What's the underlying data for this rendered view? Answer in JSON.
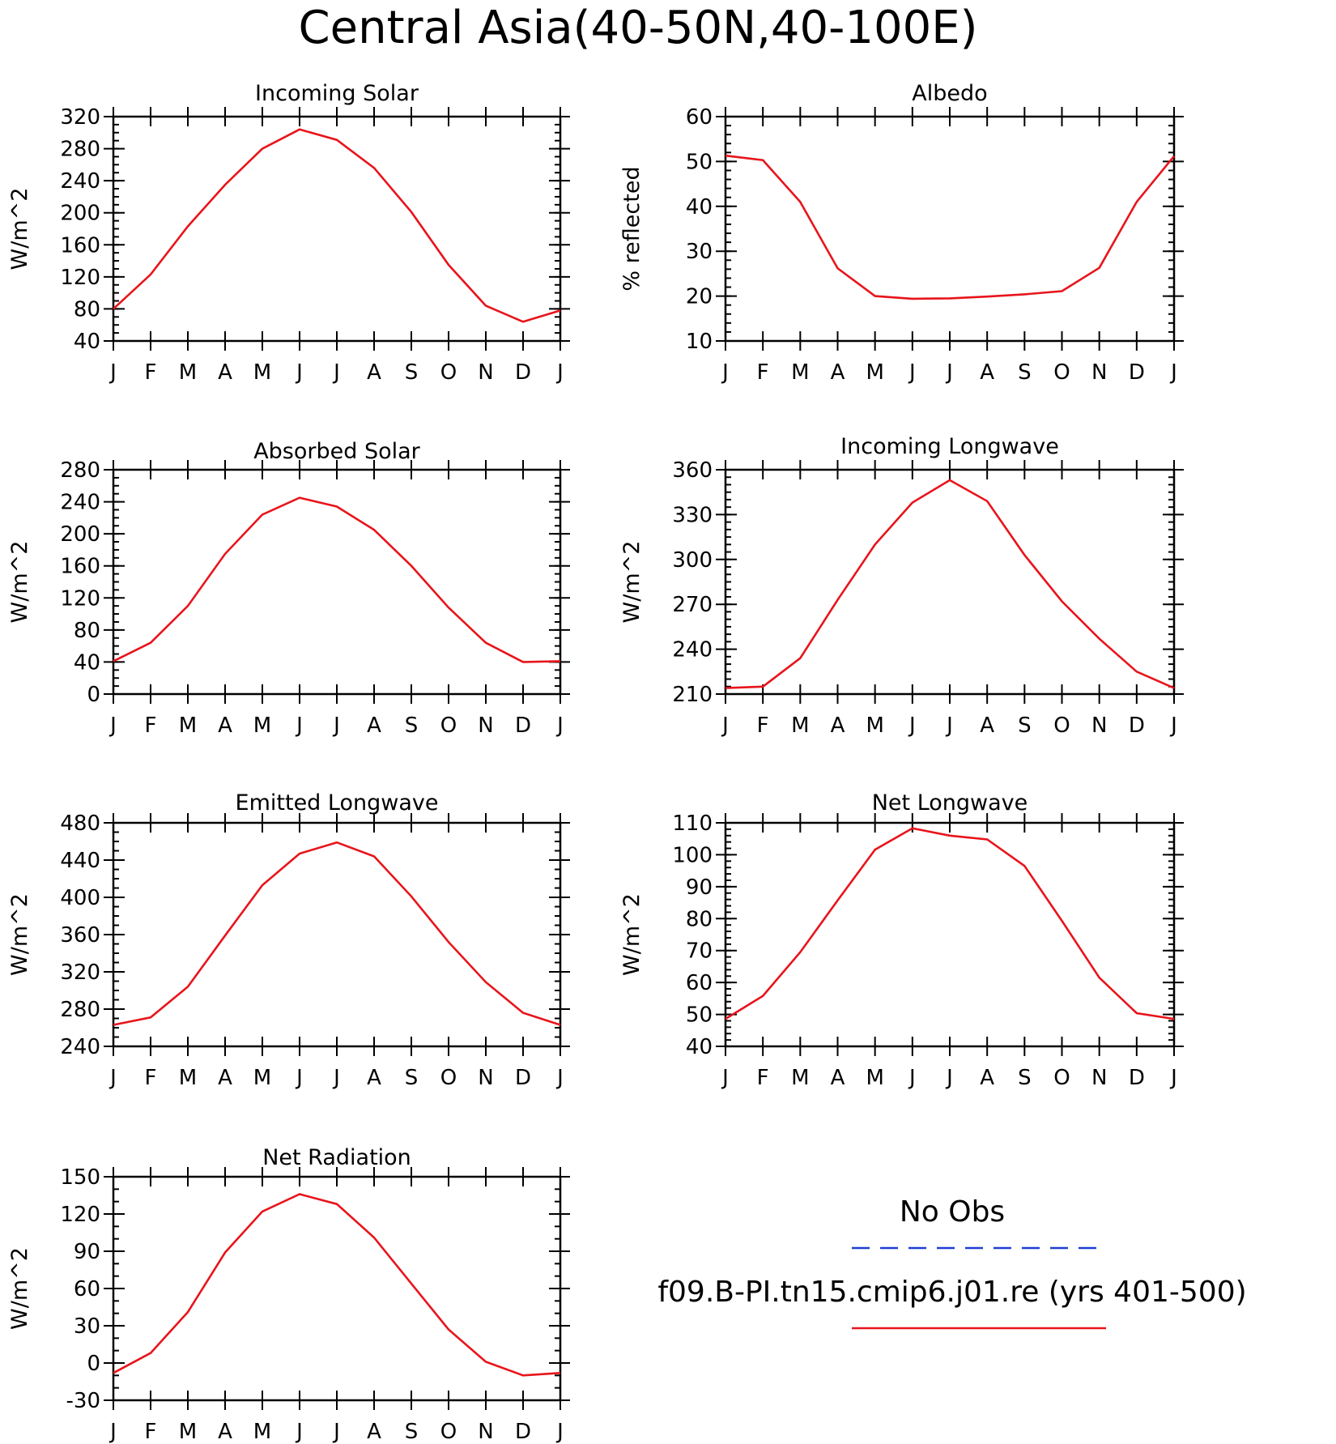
{
  "figure": {
    "title": "Central Asia(40-50N,40-100E)"
  },
  "legend": {
    "entries": [
      {
        "label": "No Obs",
        "color": "#1f3fd6",
        "dash": true
      },
      {
        "label": "f09.B-PI.tn15.cmip6.j01.re (yrs 401-500)",
        "color": "#e8141b",
        "dash": false
      }
    ]
  },
  "colors": {
    "model": "#e8141b",
    "obs": "#1f3fd6"
  },
  "chart_data": [
    {
      "type": "line",
      "title": "Incoming Solar",
      "ylabel": "W/m^2",
      "categories": [
        "J",
        "F",
        "M",
        "A",
        "M",
        "J",
        "J",
        "A",
        "S",
        "O",
        "N",
        "D",
        "J"
      ],
      "ylim": [
        40,
        320
      ],
      "yticks": [
        40,
        80,
        120,
        160,
        200,
        240,
        280,
        320
      ],
      "minor_step": 10,
      "series": [
        {
          "values": [
            80,
            123,
            183,
            235,
            280,
            304,
            291,
            256,
            201,
            135,
            84,
            64,
            78
          ]
        }
      ]
    },
    {
      "type": "line",
      "title": "Albedo",
      "ylabel": "% reflected",
      "categories": [
        "J",
        "F",
        "M",
        "A",
        "M",
        "J",
        "J",
        "A",
        "S",
        "O",
        "N",
        "D",
        "J"
      ],
      "ylim": [
        10,
        60
      ],
      "yticks": [
        10,
        20,
        30,
        40,
        50,
        60
      ],
      "minor_step": 2,
      "series": [
        {
          "values": [
            51.3,
            50.3,
            41,
            26.2,
            20,
            19.4,
            19.5,
            19.9,
            20.4,
            21.1,
            26.3,
            41,
            51.2
          ]
        }
      ]
    },
    {
      "type": "line",
      "title": "Absorbed Solar",
      "ylabel": "W/m^2",
      "categories": [
        "J",
        "F",
        "M",
        "A",
        "M",
        "J",
        "J",
        "A",
        "S",
        "O",
        "N",
        "D",
        "J"
      ],
      "ylim": [
        0,
        280
      ],
      "yticks": [
        0,
        40,
        80,
        120,
        160,
        200,
        240,
        280
      ],
      "minor_step": 10,
      "series": [
        {
          "values": [
            41,
            64,
            110,
            175,
            224,
            245,
            234,
            205,
            160,
            108,
            64,
            40,
            41
          ]
        }
      ]
    },
    {
      "type": "line",
      "title": "Incoming Longwave",
      "ylabel": "W/m^2",
      "categories": [
        "J",
        "F",
        "M",
        "A",
        "M",
        "J",
        "J",
        "A",
        "S",
        "O",
        "N",
        "D",
        "J"
      ],
      "ylim": [
        210,
        360
      ],
      "yticks": [
        210,
        240,
        270,
        300,
        330,
        360
      ],
      "minor_step": 5,
      "series": [
        {
          "values": [
            214,
            215,
            234,
            273,
            310,
            338,
            353,
            339,
            303,
            272,
            247,
            225,
            214
          ]
        }
      ]
    },
    {
      "type": "line",
      "title": "Emitted Longwave",
      "ylabel": "W/m^2",
      "categories": [
        "J",
        "F",
        "M",
        "A",
        "M",
        "J",
        "J",
        "A",
        "S",
        "O",
        "N",
        "D",
        "J"
      ],
      "ylim": [
        240,
        480
      ],
      "yticks": [
        240,
        280,
        320,
        360,
        400,
        440,
        480
      ],
      "minor_step": 10,
      "series": [
        {
          "values": [
            263,
            271,
            304,
            359,
            413,
            447,
            459,
            444,
            401,
            352,
            309,
            276,
            263
          ]
        }
      ]
    },
    {
      "type": "line",
      "title": "Net Longwave",
      "ylabel": "W/m^2",
      "categories": [
        "J",
        "F",
        "M",
        "A",
        "M",
        "J",
        "J",
        "A",
        "S",
        "O",
        "N",
        "D",
        "J"
      ],
      "ylim": [
        40,
        110
      ],
      "yticks": [
        40,
        50,
        60,
        70,
        80,
        90,
        100,
        110
      ],
      "minor_step": 2,
      "series": [
        {
          "values": [
            48.6,
            55.8,
            69.5,
            85.7,
            101.6,
            108.3,
            106,
            104.8,
            96.5,
            79.3,
            61.5,
            50.4,
            48.6
          ]
        }
      ]
    },
    {
      "type": "line",
      "title": "Net Radiation",
      "ylabel": "W/m^2",
      "categories": [
        "J",
        "F",
        "M",
        "A",
        "M",
        "J",
        "J",
        "A",
        "S",
        "O",
        "N",
        "D",
        "J"
      ],
      "ylim": [
        -30,
        150
      ],
      "yticks": [
        -30,
        0,
        30,
        60,
        90,
        120,
        150
      ],
      "minor_step": 10,
      "series": [
        {
          "values": [
            -8,
            8,
            41,
            89,
            122,
            136,
            128,
            101,
            64,
            27,
            1,
            -10,
            -8
          ]
        }
      ]
    }
  ]
}
